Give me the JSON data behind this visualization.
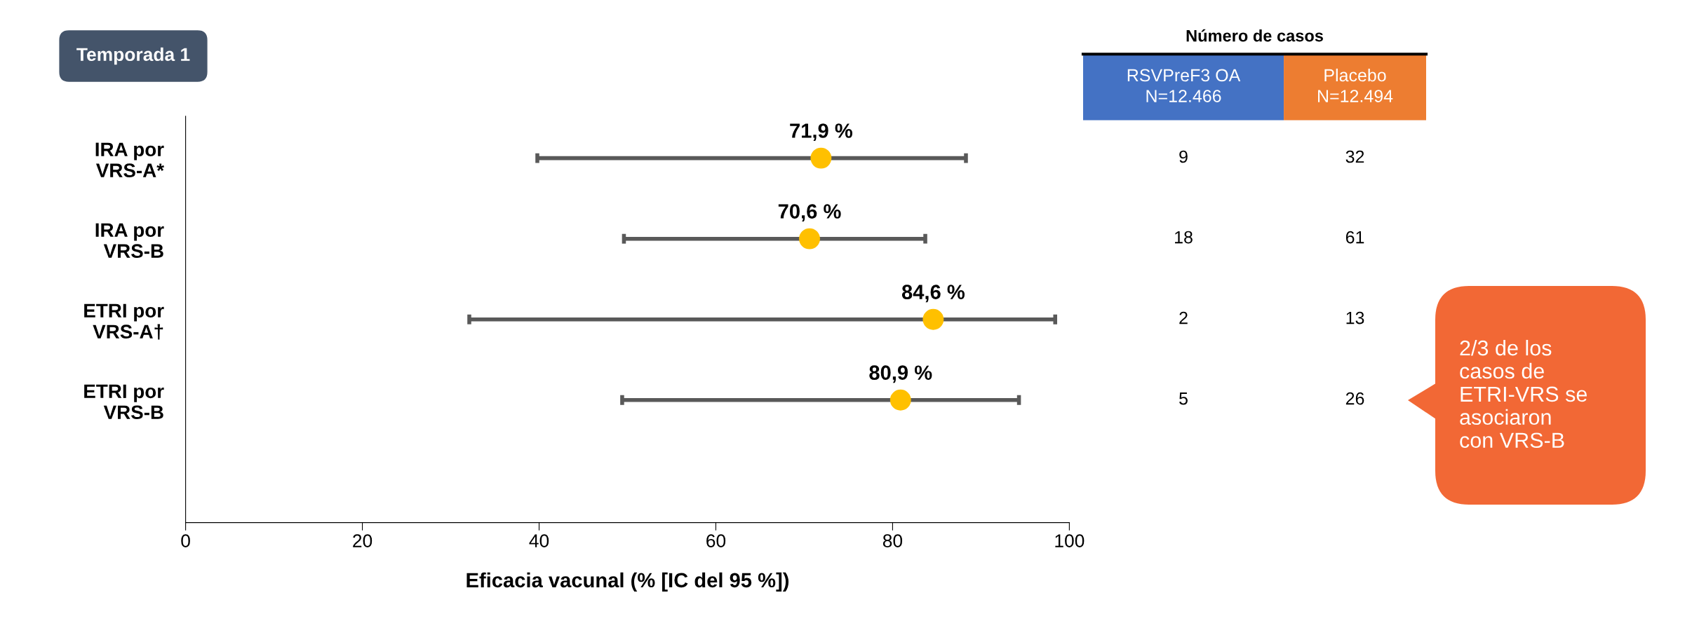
{
  "chart_data": [
    {
      "type": "scatter",
      "orientation": "horizontal",
      "title": "Temporada 1",
      "xlabel": "Eficacia vacunal (% [IC del 95 %])",
      "categories": [
        "IRA por\nVRS-A*",
        "IRA por\nVRS-B",
        "ETRI por\nVRS-A†",
        "ETRI por\nVRS-B"
      ],
      "values": [
        71.9,
        70.6,
        84.6,
        80.9
      ],
      "errors": [
        [
          39.8,
          88.3
        ],
        [
          49.6,
          83.7
        ],
        [
          32.1,
          98.4
        ],
        [
          49.4,
          94.3
        ]
      ],
      "value_labels": [
        "71,9 %",
        "70,6 %",
        "84,6 %",
        "80,9 %"
      ],
      "color": "#ffc000",
      "marker": "circle",
      "xlim": [
        0,
        100
      ],
      "xticks": [
        0,
        20,
        40,
        60,
        80,
        100
      ],
      "grid": false,
      "legend": false
    },
    {
      "type": "other",
      "title": "Número de casos",
      "categories": [
        "RSVPreF3 OA\nN=12.466",
        "Placebo\nN=12.494"
      ],
      "colors": [
        "#4472c4",
        "#ed7d31"
      ],
      "cell_labels": [
        [
          "9",
          "32"
        ],
        [
          "18",
          "61"
        ],
        [
          "2",
          "13"
        ],
        [
          "5",
          "26"
        ]
      ],
      "annotations": [
        "2/3 de los\ncasos de\nETRI-VRS se\nasociaron\ncon VRS-B"
      ]
    }
  ]
}
